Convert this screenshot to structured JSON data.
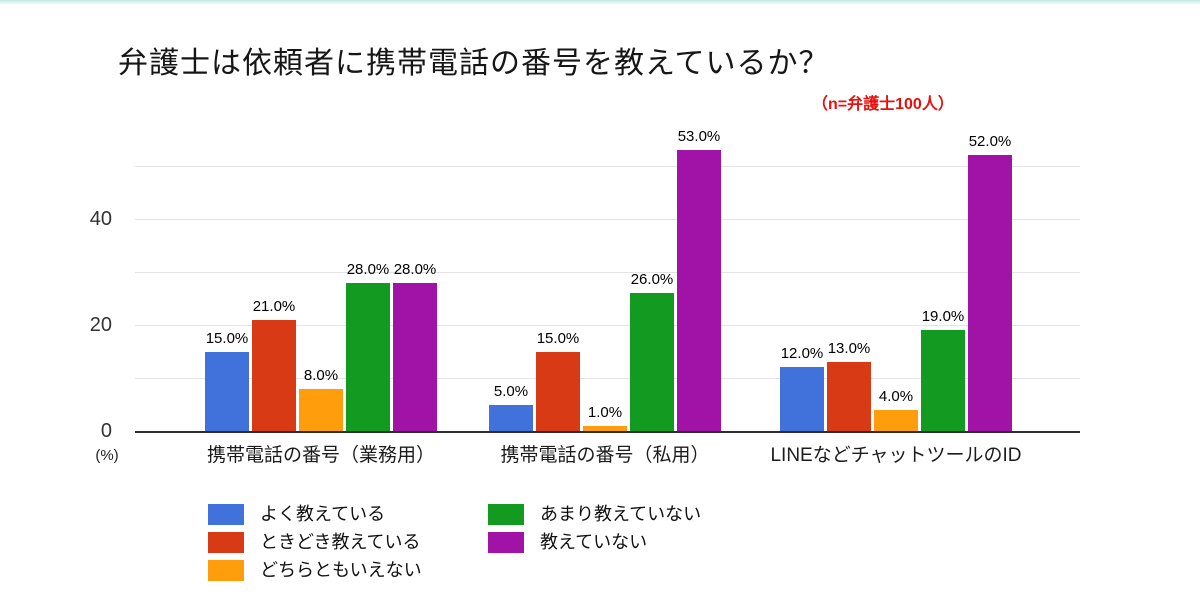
{
  "page": {
    "top_strip_color": "#bfe9e2",
    "note_color": "#e8100c"
  },
  "title": "弁護士は依頼者に携帯電話の番号を教えているか？",
  "note": "（n=弁護士100人）",
  "chart_data": {
    "type": "bar",
    "categories": [
      "携帯電話の番号（業務用）",
      "携帯電話の番号（私用）",
      "LINEなどチャットツールのID"
    ],
    "series": [
      {
        "name": "よく教えている",
        "color": "#4171DA",
        "values": [
          15.0,
          5.0,
          12.0
        ],
        "labels": [
          "15.0%",
          "5.0%",
          "12.0%"
        ]
      },
      {
        "name": "ときどき教えている",
        "color": "#D83A15",
        "values": [
          21.0,
          15.0,
          13.0
        ],
        "labels": [
          "21.0%",
          "15.0%",
          "13.0%"
        ]
      },
      {
        "name": "どちらともいえない",
        "color": "#FF9D0D",
        "values": [
          8.0,
          1.0,
          4.0
        ],
        "labels": [
          "8.0%",
          "1.0%",
          "4.0%"
        ]
      },
      {
        "name": "あまり教えていない",
        "color": "#129B20",
        "values": [
          28.0,
          26.0,
          19.0
        ],
        "labels": [
          "28.0%",
          "26.0%",
          "19.0%"
        ]
      },
      {
        "name": "教えていない",
        "color": "#A112A7",
        "values": [
          28.0,
          53.0,
          52.0
        ],
        "labels": [
          "28.0%",
          "53.0%",
          "52.0%"
        ]
      }
    ],
    "y_axis": {
      "ticks": [
        0,
        20,
        40
      ],
      "unit_label": "(%)",
      "gridline_step": 10,
      "gridline_max": 50,
      "ylim": [
        0,
        55
      ]
    },
    "legend_position": "bottom-left",
    "grid": true
  }
}
